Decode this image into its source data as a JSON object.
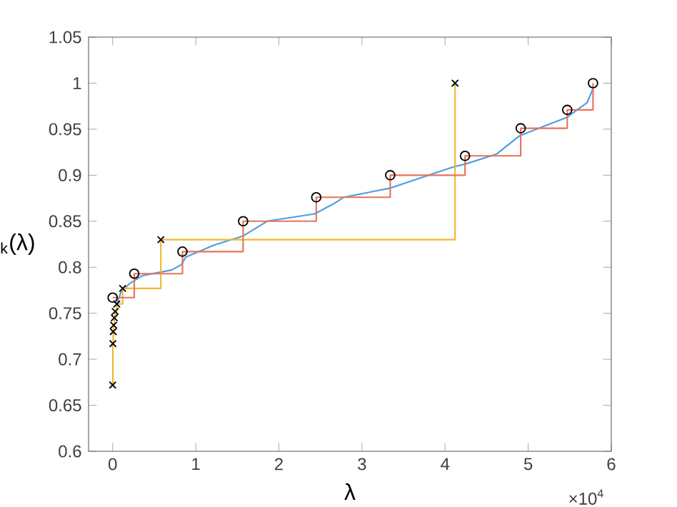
{
  "chart_data": {
    "type": "line",
    "xlabel": "λ",
    "ylabel": "$_{k}$(λ)",
    "xlim": [
      -0.29,
      6
    ],
    "ylim": [
      0.6,
      1.05
    ],
    "xticks": [
      0,
      1,
      2,
      3,
      4,
      5,
      6
    ],
    "yticks": [
      0.6,
      0.65,
      0.7,
      0.75,
      0.8,
      0.85,
      0.9,
      0.95,
      1,
      1.05
    ],
    "annotations": [
      "×10$^{4}$"
    ],
    "series": [
      {
        "color": "#4d9de0",
        "marker": "none",
        "x": [
          0.05,
          0.1,
          0.2,
          0.36,
          0.71,
          0.83,
          0.88,
          1.22,
          1.57,
          1.86,
          2.43,
          2.66,
          2.78,
          3.34,
          4.1,
          4.24,
          4.62,
          4.9,
          5.47,
          5.71,
          5.78
        ],
        "values": [
          0.76,
          0.773,
          0.782,
          0.791,
          0.797,
          0.803,
          0.811,
          0.824,
          0.834,
          0.85,
          0.858,
          0.869,
          0.876,
          0.886,
          0.909,
          0.912,
          0.923,
          0.943,
          0.963,
          0.979,
          0.994
        ]
      },
      {
        "type": "step",
        "color": "#f0b72f",
        "marker": "cross",
        "x": [
          0,
          0.003,
          0.007,
          0.012,
          0.02,
          0.03,
          0.05,
          0.12,
          0.58,
          4.12
        ],
        "values": [
          0.672,
          0.717,
          0.73,
          0.737,
          0.745,
          0.752,
          0.76,
          0.777,
          0.83,
          1.0
        ]
      },
      {
        "type": "step",
        "color": "#e8735a",
        "marker": "circle",
        "x": [
          0,
          0.26,
          0.84,
          1.57,
          2.45,
          3.34,
          4.24,
          4.91,
          5.47,
          5.78
        ],
        "values": [
          0.767,
          0.793,
          0.817,
          0.85,
          0.876,
          0.9,
          0.921,
          0.951,
          0.971,
          1.0
        ]
      }
    ]
  }
}
